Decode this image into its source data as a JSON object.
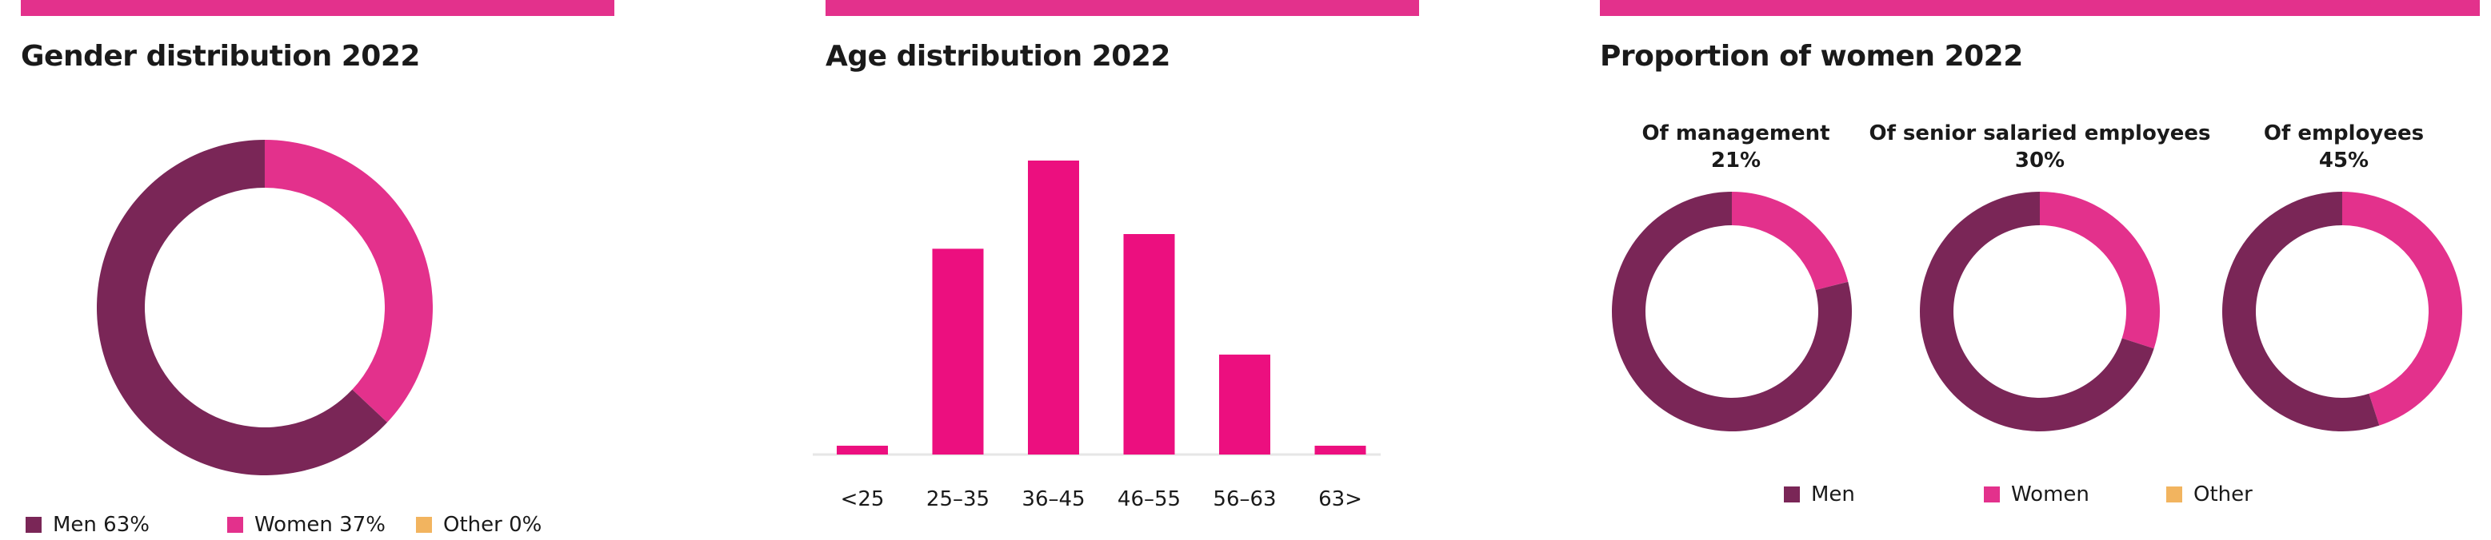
{
  "colors": {
    "accent_bar": "#e3318c",
    "men": "#7a2657",
    "women": "#e3318c",
    "other": "#f2b45f",
    "bars": "#ec0f7f",
    "axis": "#e6e6e6"
  },
  "chart_data": [
    {
      "type": "pie",
      "title": "Gender distribution 2022",
      "categories": [
        "Men",
        "Women",
        "Other"
      ],
      "values": [
        63,
        37,
        0
      ],
      "legend": [
        {
          "label": "Men 63%",
          "color": "men"
        },
        {
          "label": "Women 37%",
          "color": "women"
        },
        {
          "label": "Other 0%",
          "color": "other"
        }
      ],
      "legend_position": "bottom-left"
    },
    {
      "type": "bar",
      "title": "Age distribution 2022",
      "categories": [
        "<25",
        "25–35",
        "36–45",
        "46–55",
        "56–63",
        "63>"
      ],
      "values": [
        3,
        70,
        100,
        75,
        34,
        3
      ],
      "ylim": [
        0,
        100
      ],
      "grid": false
    },
    {
      "type": "pie",
      "title": "Proportion of women 2022",
      "charts": [
        {
          "subtitle": "Of management",
          "percent_label": "21%",
          "women": 21,
          "men": 79,
          "other": 0
        },
        {
          "subtitle": "Of senior salaried employees",
          "percent_label": "30%",
          "women": 30,
          "men": 70,
          "other": 0
        },
        {
          "subtitle": "Of employees",
          "percent_label": "45%",
          "women": 45,
          "men": 55,
          "other": 0
        }
      ],
      "legend": [
        {
          "label": "Men",
          "color": "men"
        },
        {
          "label": "Women",
          "color": "women"
        },
        {
          "label": "Other",
          "color": "other"
        }
      ],
      "legend_position": "bottom-center"
    }
  ]
}
